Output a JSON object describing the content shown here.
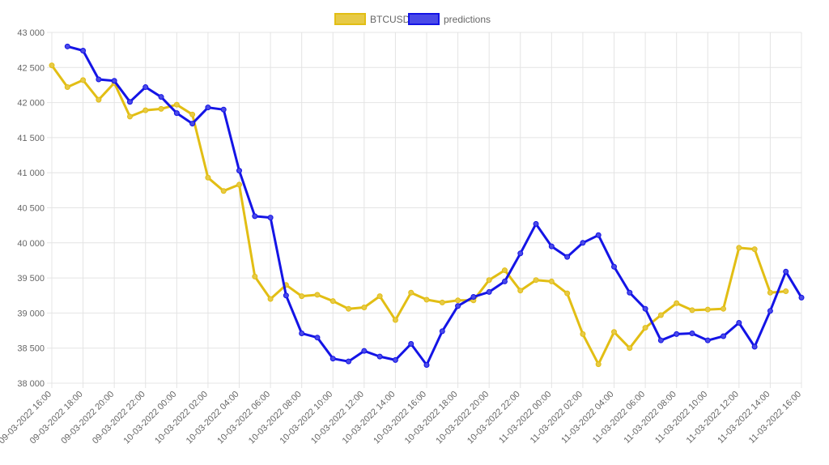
{
  "chart_data": {
    "type": "line",
    "title": "",
    "xlabel": "",
    "ylabel": "",
    "ylim": [
      38000,
      43000
    ],
    "yticks": [
      38000,
      38500,
      39000,
      39500,
      40000,
      40500,
      41000,
      41500,
      42000,
      42500,
      43000
    ],
    "ytick_labels": [
      "38 000",
      "38 500",
      "39 000",
      "39 500",
      "40 000",
      "40 500",
      "41 000",
      "41 500",
      "42 000",
      "42 500",
      "43 000"
    ],
    "xtick_labels": [
      "09-03-2022 16:00",
      "09-03-2022 18:00",
      "09-03-2022 20:00",
      "09-03-2022 22:00",
      "10-03-2022 00:00",
      "10-03-2022 02:00",
      "10-03-2022 04:00",
      "10-03-2022 06:00",
      "10-03-2022 08:00",
      "10-03-2022 10:00",
      "10-03-2022 12:00",
      "10-03-2022 14:00",
      "10-03-2022 16:00",
      "10-03-2022 18:00",
      "10-03-2022 20:00",
      "10-03-2022 22:00",
      "11-03-2022 00:00",
      "11-03-2022 02:00",
      "11-03-2022 04:00",
      "11-03-2022 06:00",
      "11-03-2022 08:00",
      "11-03-2022 10:00",
      "11-03-2022 12:00",
      "11-03-2022 14:00",
      "11-03-2022 16:00"
    ],
    "x": [
      "09-03-2022 16:00",
      "09-03-2022 17:00",
      "09-03-2022 18:00",
      "09-03-2022 19:00",
      "09-03-2022 20:00",
      "09-03-2022 21:00",
      "09-03-2022 22:00",
      "09-03-2022 23:00",
      "10-03-2022 00:00",
      "10-03-2022 01:00",
      "10-03-2022 02:00",
      "10-03-2022 03:00",
      "10-03-2022 04:00",
      "10-03-2022 05:00",
      "10-03-2022 06:00",
      "10-03-2022 07:00",
      "10-03-2022 08:00",
      "10-03-2022 09:00",
      "10-03-2022 10:00",
      "10-03-2022 11:00",
      "10-03-2022 12:00",
      "10-03-2022 13:00",
      "10-03-2022 14:00",
      "10-03-2022 15:00",
      "10-03-2022 16:00",
      "10-03-2022 17:00",
      "10-03-2022 18:00",
      "10-03-2022 19:00",
      "10-03-2022 20:00",
      "10-03-2022 21:00",
      "10-03-2022 22:00",
      "10-03-2022 23:00",
      "11-03-2022 00:00",
      "11-03-2022 01:00",
      "11-03-2022 02:00",
      "11-03-2022 03:00",
      "11-03-2022 04:00",
      "11-03-2022 05:00",
      "11-03-2022 06:00",
      "11-03-2022 07:00",
      "11-03-2022 08:00",
      "11-03-2022 09:00",
      "11-03-2022 10:00",
      "11-03-2022 11:00",
      "11-03-2022 12:00",
      "11-03-2022 13:00",
      "11-03-2022 14:00",
      "11-03-2022 15:00",
      "11-03-2022 16:00"
    ],
    "series": [
      {
        "name": "BTCUSD",
        "color": "#e2be14",
        "fill": "#e7ca46",
        "values": [
          42530,
          42220,
          42320,
          42040,
          42280,
          41800,
          41890,
          41910,
          41970,
          41830,
          40930,
          40740,
          40830,
          39520,
          39200,
          39400,
          39240,
          39260,
          39170,
          39060,
          39080,
          39240,
          38900,
          39290,
          39190,
          39150,
          39180,
          39180,
          39470,
          39610,
          39320,
          39470,
          39450,
          39280,
          38700,
          38270,
          38730,
          38500,
          38790,
          38970,
          39140,
          39040,
          39050,
          39060,
          39930,
          39910,
          39290,
          39310,
          null
        ]
      },
      {
        "name": "predictions",
        "color": "#1414e6",
        "fill": "#4a4ae8",
        "values": [
          null,
          42800,
          42740,
          42330,
          42310,
          42010,
          42220,
          42080,
          41850,
          41700,
          41930,
          41900,
          41030,
          40380,
          40360,
          39250,
          38710,
          38650,
          38350,
          38310,
          38460,
          38380,
          38330,
          38560,
          38260,
          38740,
          39100,
          39230,
          39300,
          39450,
          39850,
          40270,
          39950,
          39800,
          40000,
          40110,
          39660,
          39290,
          39060,
          38610,
          38700,
          38710,
          38610,
          38670,
          38860,
          38520,
          39030,
          39590,
          39220
        ]
      }
    ],
    "legend": {
      "position": "top-center"
    },
    "grid": true
  }
}
